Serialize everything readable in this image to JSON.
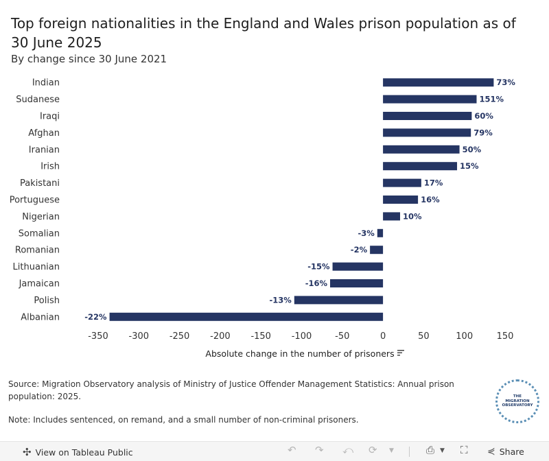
{
  "title": "Top foreign nationalities in the England and Wales prison population as of 30 June 2025",
  "subtitle": "By change since 30 June 2021",
  "chart_data": {
    "type": "bar",
    "orientation": "horizontal",
    "title": "Top foreign nationalities in the England and Wales prison population as of 30 June 2025",
    "subtitle": "By change since 30 June 2021",
    "xlabel": "Absolute change in the number of prisoners",
    "ylabel": "",
    "xlim": [
      -350,
      150
    ],
    "xticks": [
      -350,
      -300,
      -250,
      -200,
      -150,
      -100,
      -50,
      0,
      50,
      100,
      150
    ],
    "grid": false,
    "categories": [
      "Indian",
      "Sudanese",
      "Iraqi",
      "Afghan",
      "Iranian",
      "Irish",
      "Pakistani",
      "Portuguese",
      "Nigerian",
      "Somalian",
      "Romanian",
      "Lithuanian",
      "Jamaican",
      "Polish",
      "Albanian"
    ],
    "values": [
      136,
      115,
      109,
      108,
      94,
      91,
      47,
      43,
      21,
      -7,
      -16,
      -62,
      -65,
      -109,
      -336
    ],
    "labels": [
      "73%",
      "151%",
      "60%",
      "79%",
      "50%",
      "15%",
      "17%",
      "16%",
      "10%",
      "-3%",
      "-2%",
      "-15%",
      "-16%",
      "-13%",
      "-22%"
    ],
    "bar_color": "#253563"
  },
  "source": "Source: Migration Observatory analysis of Ministry of Justice Offender Management Statistics: Annual prison population: 2025.",
  "note": "Note: Includes sentenced, on remand, and a small number of non-criminal prisoners.",
  "logo": {
    "text": "THE\nMIGRATION\nOBSERVATORY"
  },
  "toolbar": {
    "view_label": "View on Tableau Public",
    "share_label": "Share",
    "icons": [
      "tableau-icon",
      "undo-icon",
      "redo-icon",
      "revert-icon",
      "refresh-icon",
      "download-icon",
      "fullscreen-icon",
      "share-icon"
    ]
  }
}
